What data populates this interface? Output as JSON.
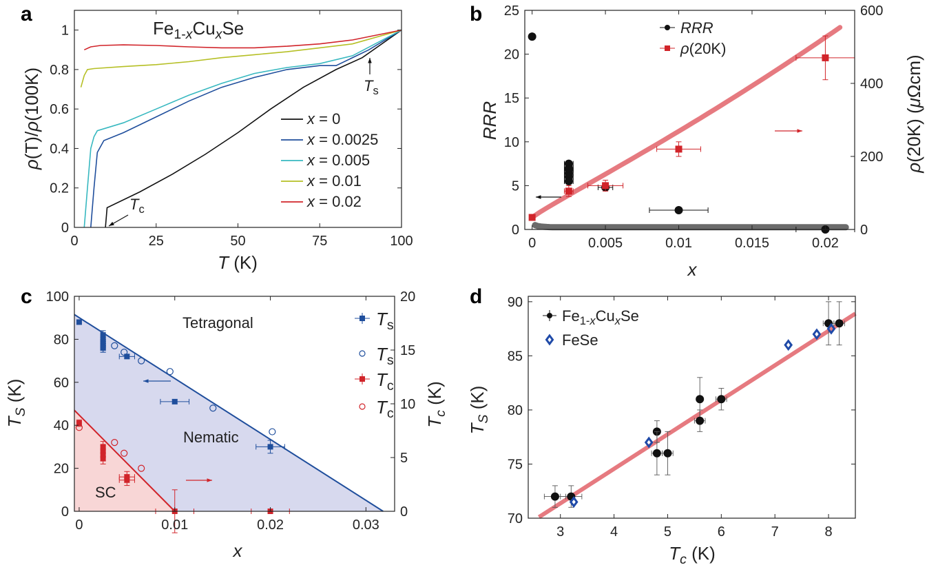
{
  "colors": {
    "black": "#111111",
    "blue": "#1f4e9c",
    "cyan": "#37b8c0",
    "olive": "#b5bf24",
    "red": "#d1242a",
    "gray": "#6b6b6b",
    "pink": "#e67a80",
    "nematic_fill": "#d7d9ee",
    "sc_fill": "#f8d6d6",
    "fese_blue": "#1f4aa8"
  },
  "chart_data": [
    {
      "id": "a",
      "type": "line",
      "panel_label": "a",
      "title": "Fe1-xCuxSe",
      "xlabel": "T (K)",
      "ylabel": "ρ(T)/ρ(100K)",
      "xlim": [
        0,
        100
      ],
      "ylim": [
        0,
        1.1
      ],
      "xticks": [
        "0",
        "25",
        "50",
        "75",
        "100"
      ],
      "yticks": [
        "0",
        "0.2",
        "0.4",
        "0.6",
        "0.8",
        "1"
      ],
      "legend_position": "lower-right",
      "series": [
        {
          "name": "x = 0",
          "color": "#111111",
          "x": [
            9.5,
            10,
            20,
            30,
            40,
            50,
            60,
            70,
            80,
            88,
            100
          ],
          "y": [
            0,
            0.1,
            0.18,
            0.27,
            0.37,
            0.48,
            0.6,
            0.71,
            0.8,
            0.86,
            1.0
          ]
        },
        {
          "name": "x = 0.0025",
          "color": "#1f4e9c",
          "x": [
            5,
            6,
            7,
            9,
            15,
            25,
            35,
            45,
            55,
            65,
            75,
            80,
            90,
            100
          ],
          "y": [
            0,
            0.2,
            0.38,
            0.44,
            0.48,
            0.56,
            0.64,
            0.71,
            0.76,
            0.8,
            0.82,
            0.82,
            0.9,
            1.0
          ]
        },
        {
          "name": "x = 0.005",
          "color": "#37b8c0",
          "x": [
            3,
            4,
            5,
            6,
            7,
            15,
            25,
            35,
            45,
            55,
            65,
            75,
            85,
            100
          ],
          "y": [
            0,
            0.2,
            0.4,
            0.46,
            0.49,
            0.53,
            0.6,
            0.67,
            0.73,
            0.78,
            0.81,
            0.83,
            0.87,
            1.0
          ]
        },
        {
          "name": "x = 0.01",
          "color": "#b5bf24",
          "x": [
            2,
            3,
            4,
            6,
            15,
            25,
            35,
            45,
            55,
            65,
            75,
            85,
            100
          ],
          "y": [
            0.71,
            0.77,
            0.8,
            0.805,
            0.815,
            0.825,
            0.84,
            0.86,
            0.875,
            0.89,
            0.91,
            0.93,
            1.0
          ]
        },
        {
          "name": "x = 0.02",
          "color": "#d1242a",
          "x": [
            3,
            5,
            8,
            15,
            25,
            35,
            45,
            55,
            65,
            75,
            85,
            100
          ],
          "y": [
            0.9,
            0.915,
            0.922,
            0.925,
            0.922,
            0.915,
            0.91,
            0.91,
            0.918,
            0.93,
            0.95,
            1.0
          ]
        }
      ],
      "annotations": [
        {
          "text": "Ts",
          "x": 90,
          "y": 0.85
        },
        {
          "text": "Tc",
          "x": 14,
          "y": 0.03
        }
      ]
    },
    {
      "id": "b",
      "type": "scatter",
      "panel_label": "b",
      "xlabel": "x",
      "ylabel_left": "RRR",
      "ylabel_right": "ρ(20K) (μΩcm)",
      "xlim": [
        -0.0005,
        0.022
      ],
      "ylim_left": [
        0,
        25
      ],
      "ylim_right": [
        0,
        600
      ],
      "xticks": [
        "0",
        "0.005",
        "0.01",
        "0.015",
        "0.02"
      ],
      "yticks_left": [
        "0",
        "5",
        "10",
        "15",
        "20",
        "25"
      ],
      "yticks_right": [
        "0",
        "200",
        "400",
        "600"
      ],
      "legend_position": "top",
      "series": [
        {
          "name": "RRR",
          "axis": "left",
          "color": "#111111",
          "marker": "circle",
          "x": [
            0,
            0.0025,
            0.0025,
            0.0025,
            0.0025,
            0.0025,
            0.0025,
            0.005,
            0.01,
            0.02
          ],
          "y": [
            22,
            7.5,
            7.0,
            6.8,
            6.4,
            6.0,
            5.5,
            4.8,
            2.2,
            0.0
          ],
          "xerr": [
            0,
            0.0003,
            0.0003,
            0.0003,
            0.0003,
            0.0003,
            0.0003,
            0.0005,
            0.002,
            0.002
          ]
        },
        {
          "name": "ρ(20K)",
          "axis": "right",
          "color": "#d1242a",
          "marker": "square",
          "x": [
            0,
            0.0025,
            0.005,
            0.01,
            0.02
          ],
          "y": [
            33,
            105,
            120,
            220,
            470
          ],
          "xerr": [
            0,
            0.0003,
            0.0012,
            0.0015,
            0.002
          ],
          "yerr": [
            0,
            15,
            15,
            20,
            60
          ]
        }
      ],
      "fits": [
        {
          "axis": "left",
          "color": "#6b6b6b",
          "type": "curve_rrr"
        },
        {
          "axis": "right",
          "color": "#e67a80",
          "type": "curve_rho"
        }
      ]
    },
    {
      "id": "c",
      "type": "scatter",
      "panel_label": "c",
      "xlabel": "x",
      "ylabel_left": "TS (K)",
      "ylabel_right": "Tc (K)",
      "xlim": [
        -0.0005,
        0.033
      ],
      "ylim_left": [
        0,
        100
      ],
      "ylim_right": [
        0,
        20
      ],
      "xticks": [
        "0",
        "0.01",
        "0.02",
        "0.03"
      ],
      "yticks_left": [
        "0",
        "20",
        "40",
        "60",
        "80",
        "100"
      ],
      "yticks_right": [
        "0",
        "5",
        "10",
        "15",
        "20"
      ],
      "legend_position": "top-right",
      "region_labels": [
        "Tetragonal",
        "Nematic",
        "SC"
      ],
      "series": [
        {
          "name": "Ts",
          "axis": "left",
          "color": "#1f4e9c",
          "marker": "square-filled",
          "x": [
            0,
            0.0025,
            0.0025,
            0.0025,
            0.0025,
            0.0025,
            0.0025,
            0.0025,
            0.005,
            0.01,
            0.02
          ],
          "y": [
            88,
            82,
            80,
            79,
            78,
            77,
            76,
            76,
            72,
            51,
            30
          ],
          "xerr": [
            0,
            0.0002,
            0.0002,
            0.0002,
            0.0002,
            0.0002,
            0.0002,
            0.0002,
            0.0008,
            0.0015,
            0.0015
          ],
          "yerr": [
            1,
            2,
            2,
            2,
            2,
            2,
            2,
            2,
            1,
            1,
            3
          ]
        },
        {
          "name": "Ts",
          "axis": "left",
          "color": "#1f4e9c",
          "marker": "circle-open",
          "x": [
            0.0037,
            0.0047,
            0.0065,
            0.0095,
            0.014,
            0.0202
          ],
          "y": [
            77,
            74,
            70,
            65,
            48,
            37
          ]
        },
        {
          "name": "Tc",
          "axis": "right",
          "color": "#d1242a",
          "marker": "square-filled",
          "x": [
            0,
            0.0025,
            0.0025,
            0.0025,
            0.0025,
            0.005,
            0.005,
            0.01,
            0.02
          ],
          "y": [
            8.2,
            6.0,
            5.6,
            5.2,
            4.9,
            3.2,
            2.9,
            0,
            0
          ],
          "xerr": [
            0,
            0.0002,
            0.0002,
            0.0002,
            0.0002,
            0.0008,
            0.0008,
            0.002,
            0.002
          ],
          "yerr": [
            0.3,
            0.5,
            0.5,
            0.5,
            0.5,
            0.5,
            0.5,
            2,
            0
          ]
        },
        {
          "name": "Tc",
          "axis": "right",
          "color": "#d1242a",
          "marker": "circle-open",
          "x": [
            0,
            0.0037,
            0.0047,
            0.0065
          ],
          "y": [
            7.8,
            6.4,
            5.4,
            4.0
          ]
        }
      ],
      "lines": [
        {
          "axis": "left",
          "color": "#1f4e9c",
          "x": [
            0,
            0.0318
          ],
          "y": [
            91.5,
            0
          ]
        },
        {
          "axis": "right",
          "color": "#d1242a",
          "x": [
            0,
            0.01
          ],
          "y": [
            9.4,
            0
          ]
        }
      ]
    },
    {
      "id": "d",
      "type": "scatter",
      "panel_label": "d",
      "xlabel": "Tc (K)",
      "ylabel": "TS (K)",
      "xlim": [
        2.4,
        8.5
      ],
      "ylim": [
        70,
        90.5
      ],
      "xticks": [
        "3",
        "4",
        "5",
        "6",
        "7",
        "8"
      ],
      "yticks": [
        "70",
        "75",
        "80",
        "85",
        "90"
      ],
      "legend_position": "top-left",
      "series": [
        {
          "name": "Fe1-xCuxSe",
          "color": "#111111",
          "marker": "circle",
          "x": [
            2.9,
            3.2,
            4.8,
            4.8,
            5.0,
            5.6,
            5.6,
            6.0,
            8.0,
            8.2
          ],
          "y": [
            72,
            72,
            78,
            76,
            76,
            81,
            79,
            81,
            88,
            88
          ],
          "xerr": [
            0.2,
            0.2,
            0.05,
            0.1,
            0.1,
            0.05,
            0.1,
            0.1,
            0.1,
            0.1
          ],
          "yerr": [
            1,
            1,
            1,
            2,
            2,
            2,
            1,
            1,
            2,
            2
          ]
        },
        {
          "name": "FeSe",
          "color": "#1f4aa8",
          "marker": "diamond-open",
          "x": [
            3.25,
            4.65,
            7.25,
            7.78,
            8.05
          ],
          "y": [
            71.5,
            77,
            86,
            87,
            87.5
          ]
        }
      ],
      "fit": {
        "color": "#e67a80",
        "x": [
          2.6,
          8.5
        ],
        "y": [
          70.1,
          88.9
        ]
      }
    }
  ]
}
